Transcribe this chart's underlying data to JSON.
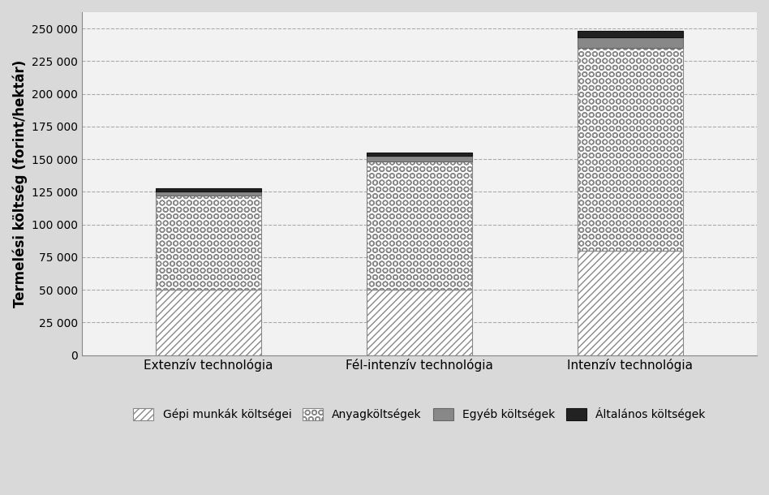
{
  "categories": [
    "Extenzív technológia",
    "Fél-intenzív technológia",
    "Intenzív technológia"
  ],
  "series": {
    "Gépi munkák költségei": [
      50000,
      50000,
      80000
    ],
    "Anyagköltségek": [
      72000,
      98000,
      155000
    ],
    "Egyéb költségek": [
      3500,
      4500,
      8000
    ],
    "Általános költségek": [
      2500,
      2500,
      5000
    ]
  },
  "ylabel": "Termelési költség (forint/hektár)",
  "ylim": [
    0,
    262500
  ],
  "yticks": [
    0,
    25000,
    50000,
    75000,
    100000,
    125000,
    150000,
    175000,
    200000,
    225000,
    250000
  ],
  "ytick_labels": [
    "0",
    "25 000",
    "50 000",
    "75 000",
    "100 000",
    "125 000",
    "150 000",
    "175 000",
    "200 000",
    "225 000",
    "250 000"
  ],
  "background_color": "#d9d9d9",
  "plot_background_color": "#f2f2f2",
  "bar_width": 0.5,
  "figsize": [
    9.48,
    6.1
  ],
  "dpi": 100
}
